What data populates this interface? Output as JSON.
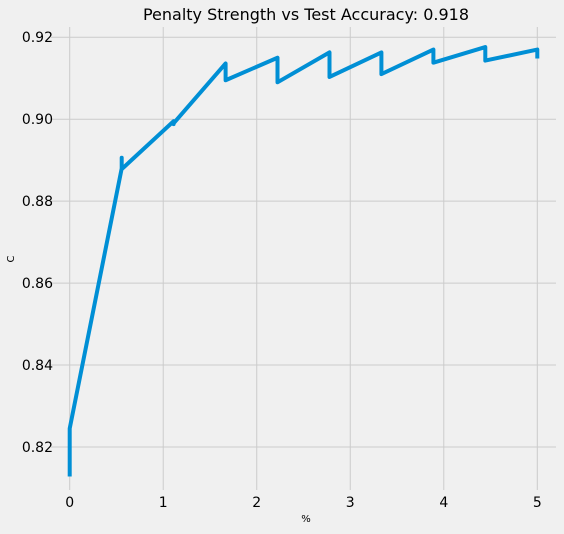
{
  "chart_data": {
    "type": "line",
    "title": "Penalty Strength vs Test Accuracy: 0.918",
    "xlabel": "%",
    "ylabel": "C",
    "xlim": [
      -0.2,
      5.2
    ],
    "ylim": [
      0.8095,
      0.9225
    ],
    "x_ticks": [
      0,
      1,
      2,
      3,
      4,
      5
    ],
    "y_ticks": [
      0.82,
      0.84,
      0.86,
      0.88,
      0.9,
      0.92
    ],
    "x_tick_labels": [
      "0",
      "1",
      "2",
      "3",
      "4",
      "5"
    ],
    "y_tick_labels": [
      "0.82",
      "0.84",
      "0.86",
      "0.88",
      "0.90",
      "0.92"
    ],
    "grid": true,
    "series": [
      {
        "color": "#008fd5",
        "x": [
          0,
          0,
          0.556,
          0.556,
          0.556,
          1.111,
          1.111,
          1.111,
          1.667,
          1.667,
          2.222,
          2.222,
          2.778,
          2.778,
          3.333,
          3.333,
          3.889,
          3.889,
          4.444,
          4.444,
          5.0,
          5.0
        ],
        "y": [
          0.8128,
          0.8245,
          0.888,
          0.8906,
          0.8878,
          0.8995,
          0.8988,
          0.899,
          0.9136,
          0.9095,
          0.915,
          0.909,
          0.9163,
          0.9103,
          0.9163,
          0.911,
          0.917,
          0.9138,
          0.9176,
          0.9143,
          0.917,
          0.9148
        ]
      }
    ]
  }
}
